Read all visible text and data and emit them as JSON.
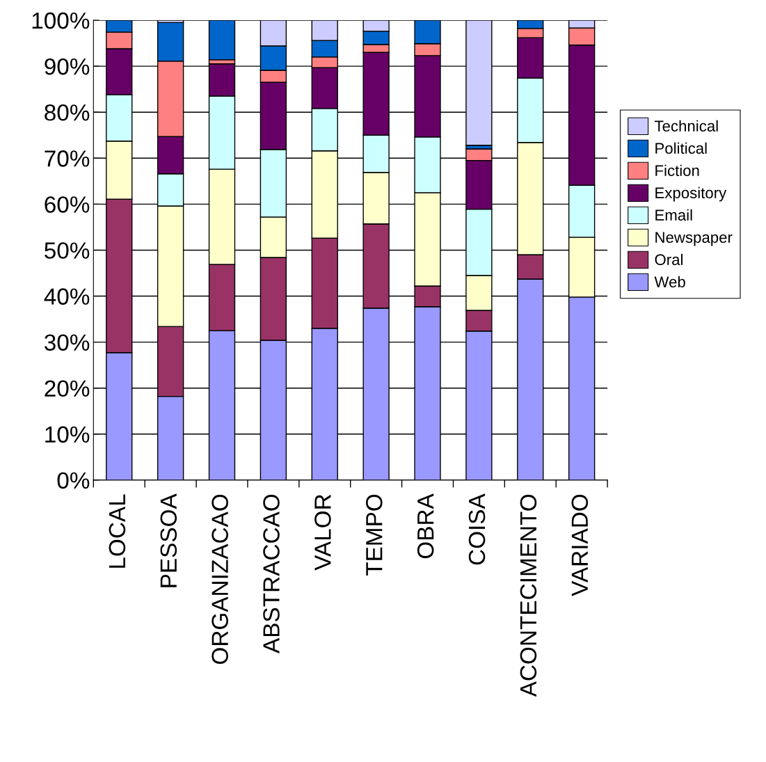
{
  "chart_data": {
    "type": "bar",
    "stacked": true,
    "categories": [
      "LOCAL",
      "PESSOA",
      "ORGANIZACAO",
      "ABSTRACCAO",
      "VALOR",
      "TEMPO",
      "OBRA",
      "COISA",
      "ACONTECIMENTO",
      "VARIADO"
    ],
    "series": [
      {
        "name": "Web",
        "color": "#9999ff",
        "values": [
          27.7,
          18.2,
          32.5,
          30.4,
          33.0,
          37.4,
          37.7,
          32.4,
          43.7,
          39.8
        ]
      },
      {
        "name": "Oral",
        "color": "#993366",
        "values": [
          33.4,
          15.2,
          14.4,
          18.0,
          19.6,
          18.3,
          4.5,
          4.5,
          5.3,
          null
        ]
      },
      {
        "name": "Newspaper",
        "color": "#ffffcc",
        "values": [
          12.6,
          26.2,
          20.7,
          8.8,
          19.0,
          11.2,
          20.3,
          7.6,
          24.4,
          13.0
        ]
      },
      {
        "name": "Email",
        "color": "#ccffff",
        "values": [
          10.1,
          7.0,
          15.9,
          14.7,
          9.2,
          8.1,
          12.1,
          14.4,
          14.0,
          11.3
        ]
      },
      {
        "name": "Expository",
        "color": "#660066",
        "values": [
          10.0,
          8.1,
          7.0,
          14.6,
          8.9,
          18.0,
          17.7,
          10.6,
          8.8,
          30.5
        ]
      },
      {
        "name": "Fiction",
        "color": "#ff8080",
        "values": [
          3.6,
          16.4,
          0.9,
          2.6,
          2.3,
          1.7,
          2.6,
          2.5,
          2.0,
          3.7
        ]
      },
      {
        "name": "Political",
        "color": "#0066cc",
        "values": [
          2.6,
          8.4,
          8.6,
          5.3,
          3.6,
          2.9,
          5.1,
          0.8,
          1.8,
          null
        ]
      },
      {
        "name": "Technical",
        "color": "#ccccff",
        "values": [
          null,
          0.5,
          null,
          5.6,
          4.4,
          2.4,
          null,
          27.2,
          null,
          1.7
        ]
      }
    ],
    "ylim": [
      0,
      100
    ],
    "yticks": [
      {
        "value": 0,
        "label": "0%"
      },
      {
        "value": 10,
        "label": "10%"
      },
      {
        "value": 20,
        "label": "20%"
      },
      {
        "value": 30,
        "label": "30%"
      },
      {
        "value": 40,
        "label": "40%"
      },
      {
        "value": 50,
        "label": "50%"
      },
      {
        "value": 60,
        "label": "60%"
      },
      {
        "value": 70,
        "label": "70%"
      },
      {
        "value": 80,
        "label": "80%"
      },
      {
        "value": 90,
        "label": "90%"
      },
      {
        "value": 100,
        "label": "100%"
      }
    ],
    "grid": "y",
    "legend": "right"
  }
}
